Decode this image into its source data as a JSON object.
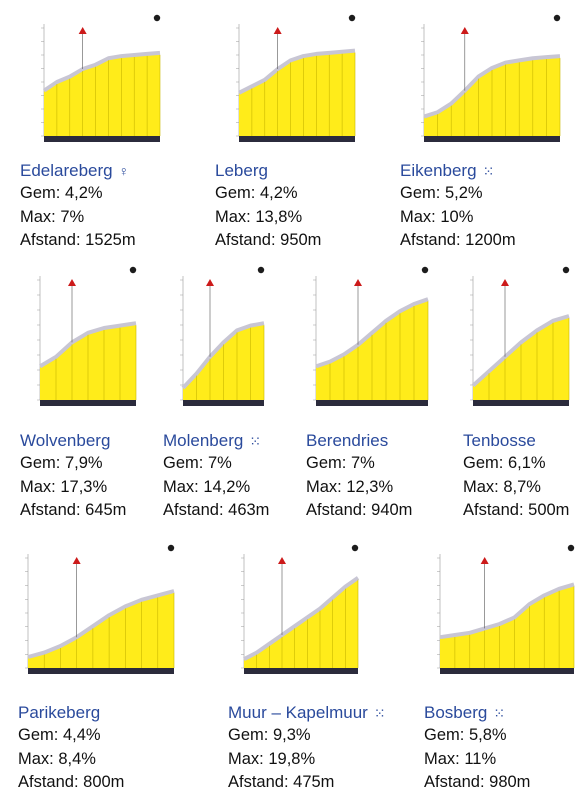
{
  "accent_color": "#2a4a9c",
  "profile_fill": "#ffec1a",
  "profile_edge": "#c8c6d4",
  "labels": {
    "avg": "Gem:",
    "max": "Max:",
    "distance": "Afstand:"
  },
  "climbs": [
    {
      "name": "Edelareberg",
      "icon": "female-symbol-icon",
      "glyph": "♀",
      "avg": "4,2%",
      "max": "7%",
      "distance": "1525m",
      "heights": [
        0.42,
        0.5,
        0.55,
        0.62,
        0.66,
        0.72,
        0.74,
        0.75,
        0.76,
        0.77
      ]
    },
    {
      "name": "Leberg",
      "icon": "",
      "glyph": "",
      "avg": "4,2%",
      "max": "13,8%",
      "distance": "950m",
      "heights": [
        0.4,
        0.46,
        0.52,
        0.62,
        0.7,
        0.74,
        0.76,
        0.77,
        0.78,
        0.79
      ]
    },
    {
      "name": "Eikenberg",
      "icon": "cobblestone-icon",
      "glyph": "⁙",
      "avg": "5,2%",
      "max": "10%",
      "distance": "1200m",
      "heights": [
        0.18,
        0.22,
        0.3,
        0.42,
        0.55,
        0.63,
        0.68,
        0.7,
        0.72,
        0.73,
        0.74
      ]
    },
    {
      "name": "Wolvenberg",
      "icon": "",
      "glyph": "",
      "avg": "7,9%",
      "max": "17,3%",
      "distance": "645m",
      "heights": [
        0.28,
        0.36,
        0.48,
        0.56,
        0.6,
        0.62,
        0.64
      ]
    },
    {
      "name": "Molenberg",
      "icon": "cobblestone-icon",
      "glyph": "⁙",
      "avg": "7%",
      "max": "14,2%",
      "distance": "463m",
      "heights": [
        0.1,
        0.22,
        0.36,
        0.48,
        0.58,
        0.62,
        0.64
      ]
    },
    {
      "name": "Berendries",
      "icon": "",
      "glyph": "",
      "avg": "7%",
      "max": "12,3%",
      "distance": "940m",
      "heights": [
        0.28,
        0.32,
        0.38,
        0.46,
        0.56,
        0.66,
        0.74,
        0.8,
        0.84
      ]
    },
    {
      "name": "Tenbosse",
      "icon": "",
      "glyph": "",
      "avg": "6,1%",
      "max": "8,7%",
      "distance": "500m",
      "heights": [
        0.12,
        0.24,
        0.36,
        0.48,
        0.58,
        0.66,
        0.7
      ]
    },
    {
      "name": "Parikeberg",
      "icon": "",
      "glyph": "",
      "avg": "4,4%",
      "max": "8,4%",
      "distance": "800m",
      "heights": [
        0.1,
        0.14,
        0.2,
        0.28,
        0.38,
        0.48,
        0.56,
        0.62,
        0.66,
        0.7
      ]
    },
    {
      "name": "Muur – Kapelmuur",
      "icon": "cobblestone-icon",
      "glyph": "⁙",
      "avg": "9,3%",
      "max": "19,8%",
      "distance": "475m",
      "heights": [
        0.08,
        0.14,
        0.22,
        0.3,
        0.38,
        0.46,
        0.54,
        0.64,
        0.74,
        0.82
      ]
    },
    {
      "name": "Bosberg",
      "icon": "cobblestone-icon",
      "glyph": "⁙",
      "avg": "5,8%",
      "max": "11%",
      "distance": "980m",
      "heights": [
        0.28,
        0.3,
        0.32,
        0.36,
        0.4,
        0.46,
        0.58,
        0.66,
        0.72,
        0.76
      ]
    }
  ]
}
